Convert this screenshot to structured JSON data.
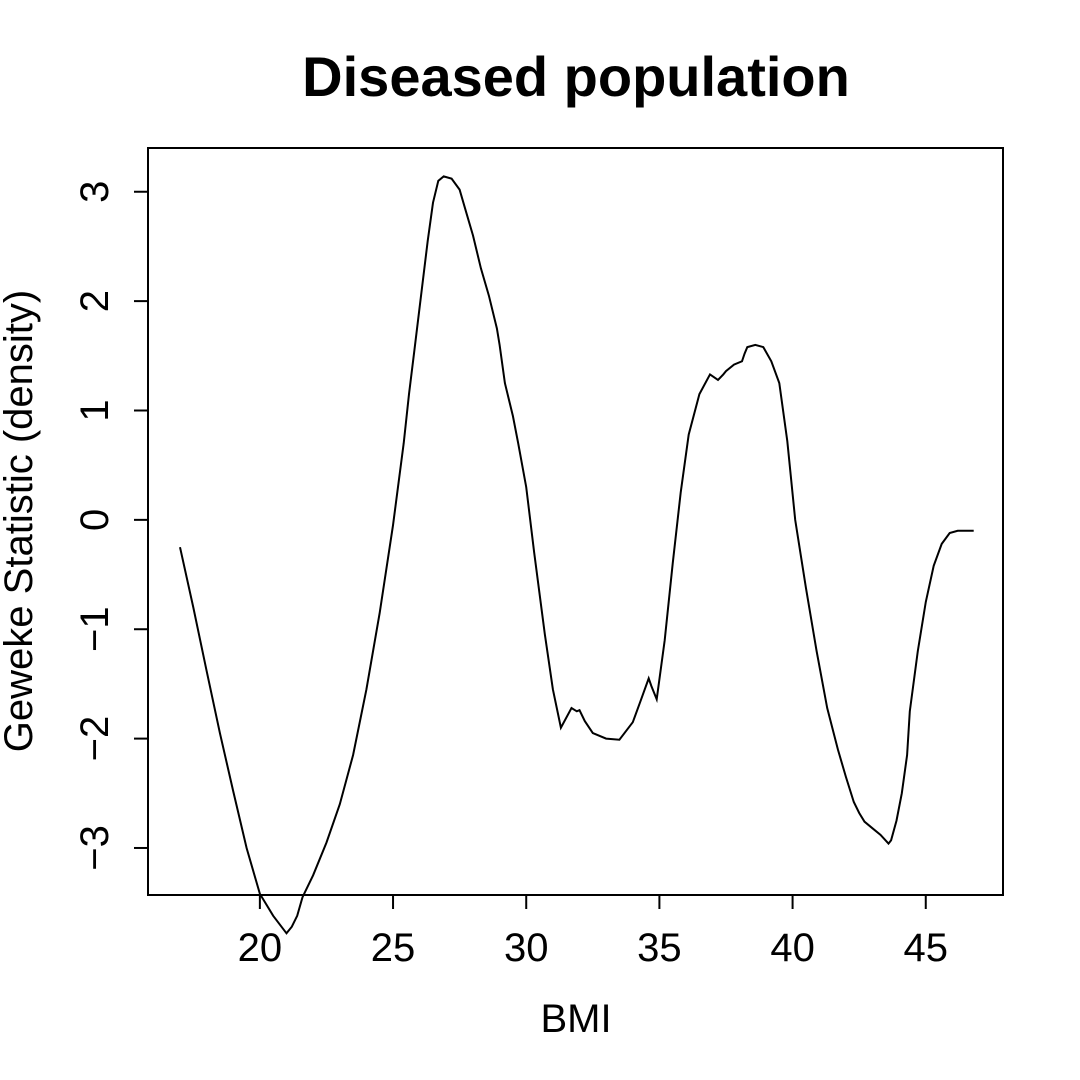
{
  "chart_data": {
    "type": "line",
    "title": "Diseased population",
    "xlabel": "BMI",
    "ylabel": "Geweke Statistic (density)",
    "xlim": [
      15.8,
      47.9
    ],
    "ylim": [
      -3.43,
      3.4
    ],
    "x_ticks": [
      20,
      25,
      30,
      35,
      40,
      45
    ],
    "y_ticks": [
      -3,
      -2,
      -1,
      0,
      1,
      2,
      3
    ],
    "x_tick_labels": [
      "20",
      "25",
      "30",
      "35",
      "40",
      "45"
    ],
    "y_tick_labels": [
      "−3",
      "−2",
      "−1",
      "0",
      "1",
      "2",
      "3"
    ],
    "grid": false,
    "line_color": "#000000",
    "series": [
      {
        "x": [
          17.0,
          17.5,
          18.0,
          18.5,
          19.0,
          19.5,
          20.0,
          20.5,
          21.0,
          21.2,
          21.4,
          21.6,
          22.0,
          22.5,
          23.0,
          23.5,
          24.0,
          24.5,
          25.0,
          25.4,
          25.6,
          25.8,
          26.0,
          26.3,
          26.5,
          26.7,
          26.9,
          27.2,
          27.5,
          27.7,
          28.0,
          28.3,
          28.6,
          28.9,
          29.0,
          29.2,
          29.5,
          29.7,
          30.0,
          30.3,
          30.7,
          31.0,
          31.3,
          31.7,
          31.9,
          32.0,
          32.2,
          32.5,
          33.0,
          33.5,
          34.0,
          34.3,
          34.6,
          34.7,
          34.9,
          35.2,
          35.5,
          35.8,
          36.1,
          36.5,
          36.9,
          37.2,
          37.4,
          37.5,
          37.8,
          38.1,
          38.2,
          38.3,
          38.6,
          38.9,
          39.2,
          39.5,
          39.8,
          40.1,
          40.5,
          40.9,
          41.3,
          41.7,
          42.0,
          42.3,
          42.5,
          42.7,
          43.0,
          43.3,
          43.6,
          43.7,
          43.9,
          44.1,
          44.3,
          44.4,
          44.7,
          45.0,
          45.3,
          45.6,
          45.9,
          46.2,
          46.5,
          46.8
        ],
        "y": [
          -0.25,
          -0.8,
          -1.38,
          -1.95,
          -2.48,
          -3.0,
          -3.42,
          -3.62,
          -3.78,
          -3.72,
          -3.62,
          -3.45,
          -3.25,
          -2.95,
          -2.6,
          -2.15,
          -1.55,
          -0.85,
          -0.05,
          0.7,
          1.15,
          1.55,
          1.95,
          2.55,
          2.9,
          3.1,
          3.14,
          3.12,
          3.02,
          2.85,
          2.6,
          2.3,
          2.05,
          1.75,
          1.6,
          1.25,
          0.95,
          0.7,
          0.3,
          -0.3,
          -1.05,
          -1.55,
          -1.9,
          -1.72,
          -1.75,
          -1.74,
          -1.84,
          -1.95,
          -2.0,
          -2.01,
          -1.85,
          -1.65,
          -1.45,
          -1.52,
          -1.64,
          -1.1,
          -0.4,
          0.25,
          0.78,
          1.15,
          1.33,
          1.28,
          1.33,
          1.36,
          1.42,
          1.45,
          1.52,
          1.58,
          1.6,
          1.58,
          1.45,
          1.25,
          0.72,
          0.0,
          -0.62,
          -1.2,
          -1.72,
          -2.1,
          -2.35,
          -2.58,
          -2.68,
          -2.76,
          -2.82,
          -2.88,
          -2.96,
          -2.93,
          -2.75,
          -2.5,
          -2.15,
          -1.75,
          -1.2,
          -0.75,
          -0.42,
          -0.22,
          -0.12,
          -0.1,
          -0.1,
          -0.1
        ]
      }
    ]
  }
}
